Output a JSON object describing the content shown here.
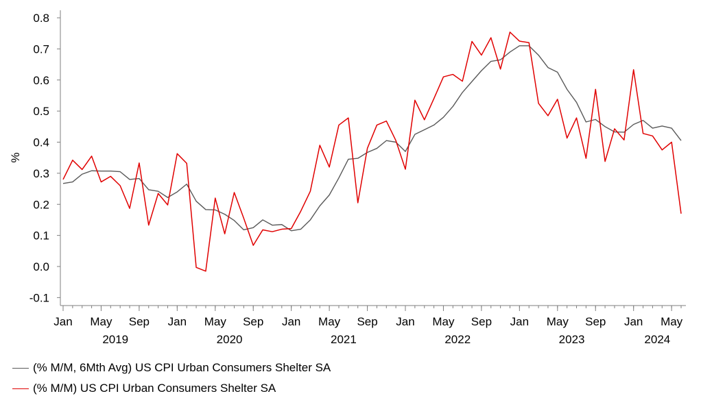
{
  "chart_data": {
    "type": "line",
    "ylabel": "%",
    "ylim": [
      -0.12,
      0.82
    ],
    "yticks": [
      -0.1,
      0.0,
      0.1,
      0.2,
      0.3,
      0.4,
      0.5,
      0.6,
      0.7,
      0.8
    ],
    "ytick_labels": [
      "-0.1",
      "0.0",
      "0.1",
      "0.2",
      "0.3",
      "0.4",
      "0.5",
      "0.6",
      "0.7",
      "0.8"
    ],
    "x_start": "2019-01",
    "x_end": "2024-06",
    "month_tick_labels": [
      "Jan",
      "May",
      "Sep",
      "Jan",
      "May",
      "Sep",
      "Jan",
      "May",
      "Sep",
      "Jan",
      "May",
      "Sep",
      "Jan",
      "May",
      "Sep",
      "Jan",
      "May"
    ],
    "month_tick_dates": [
      "2019-01",
      "2019-05",
      "2019-09",
      "2020-01",
      "2020-05",
      "2020-09",
      "2021-01",
      "2021-05",
      "2021-09",
      "2022-01",
      "2022-05",
      "2022-09",
      "2023-01",
      "2023-05",
      "2023-09",
      "2024-01",
      "2024-05"
    ],
    "year_labels": [
      "2019",
      "2020",
      "2021",
      "2022",
      "2023",
      "2024"
    ],
    "grid": false,
    "legend_position": "bottom-left",
    "series": [
      {
        "name": "(% M/M, 6Mth Avg) US CPI Urban Consumers Shelter SA",
        "color": "#595959",
        "values": [
          0.267,
          0.272,
          0.297,
          0.308,
          0.307,
          0.307,
          0.305,
          0.28,
          0.283,
          0.247,
          0.242,
          0.222,
          0.24,
          0.265,
          0.21,
          0.183,
          0.182,
          0.168,
          0.148,
          0.118,
          0.125,
          0.15,
          0.133,
          0.135,
          0.115,
          0.12,
          0.15,
          0.195,
          0.23,
          0.285,
          0.345,
          0.348,
          0.367,
          0.38,
          0.405,
          0.4,
          0.37,
          0.425,
          0.44,
          0.455,
          0.48,
          0.515,
          0.56,
          0.595,
          0.63,
          0.66,
          0.665,
          0.69,
          0.71,
          0.71,
          0.68,
          0.64,
          0.625,
          0.57,
          0.528,
          0.465,
          0.473,
          0.45,
          0.433,
          0.432,
          0.457,
          0.47,
          0.445,
          0.452,
          0.445,
          0.405
        ]
      },
      {
        "name": "(% M/M) US CPI Urban Consumers Shelter SA",
        "color": "#e00000",
        "values": [
          0.28,
          0.342,
          0.312,
          0.355,
          0.272,
          0.29,
          0.26,
          0.187,
          0.333,
          0.133,
          0.235,
          0.198,
          0.363,
          0.332,
          -0.003,
          -0.015,
          0.22,
          0.105,
          0.238,
          0.155,
          0.068,
          0.118,
          0.112,
          0.12,
          0.122,
          0.178,
          0.242,
          0.39,
          0.32,
          0.455,
          0.478,
          0.205,
          0.38,
          0.455,
          0.468,
          0.405,
          0.313,
          0.535,
          0.472,
          0.54,
          0.61,
          0.618,
          0.596,
          0.724,
          0.68,
          0.736,
          0.635,
          0.754,
          0.725,
          0.72,
          0.525,
          0.485,
          0.538,
          0.413,
          0.478,
          0.348,
          0.57,
          0.338,
          0.443,
          0.407,
          0.633,
          0.428,
          0.42,
          0.375,
          0.4,
          0.17
        ]
      }
    ]
  }
}
